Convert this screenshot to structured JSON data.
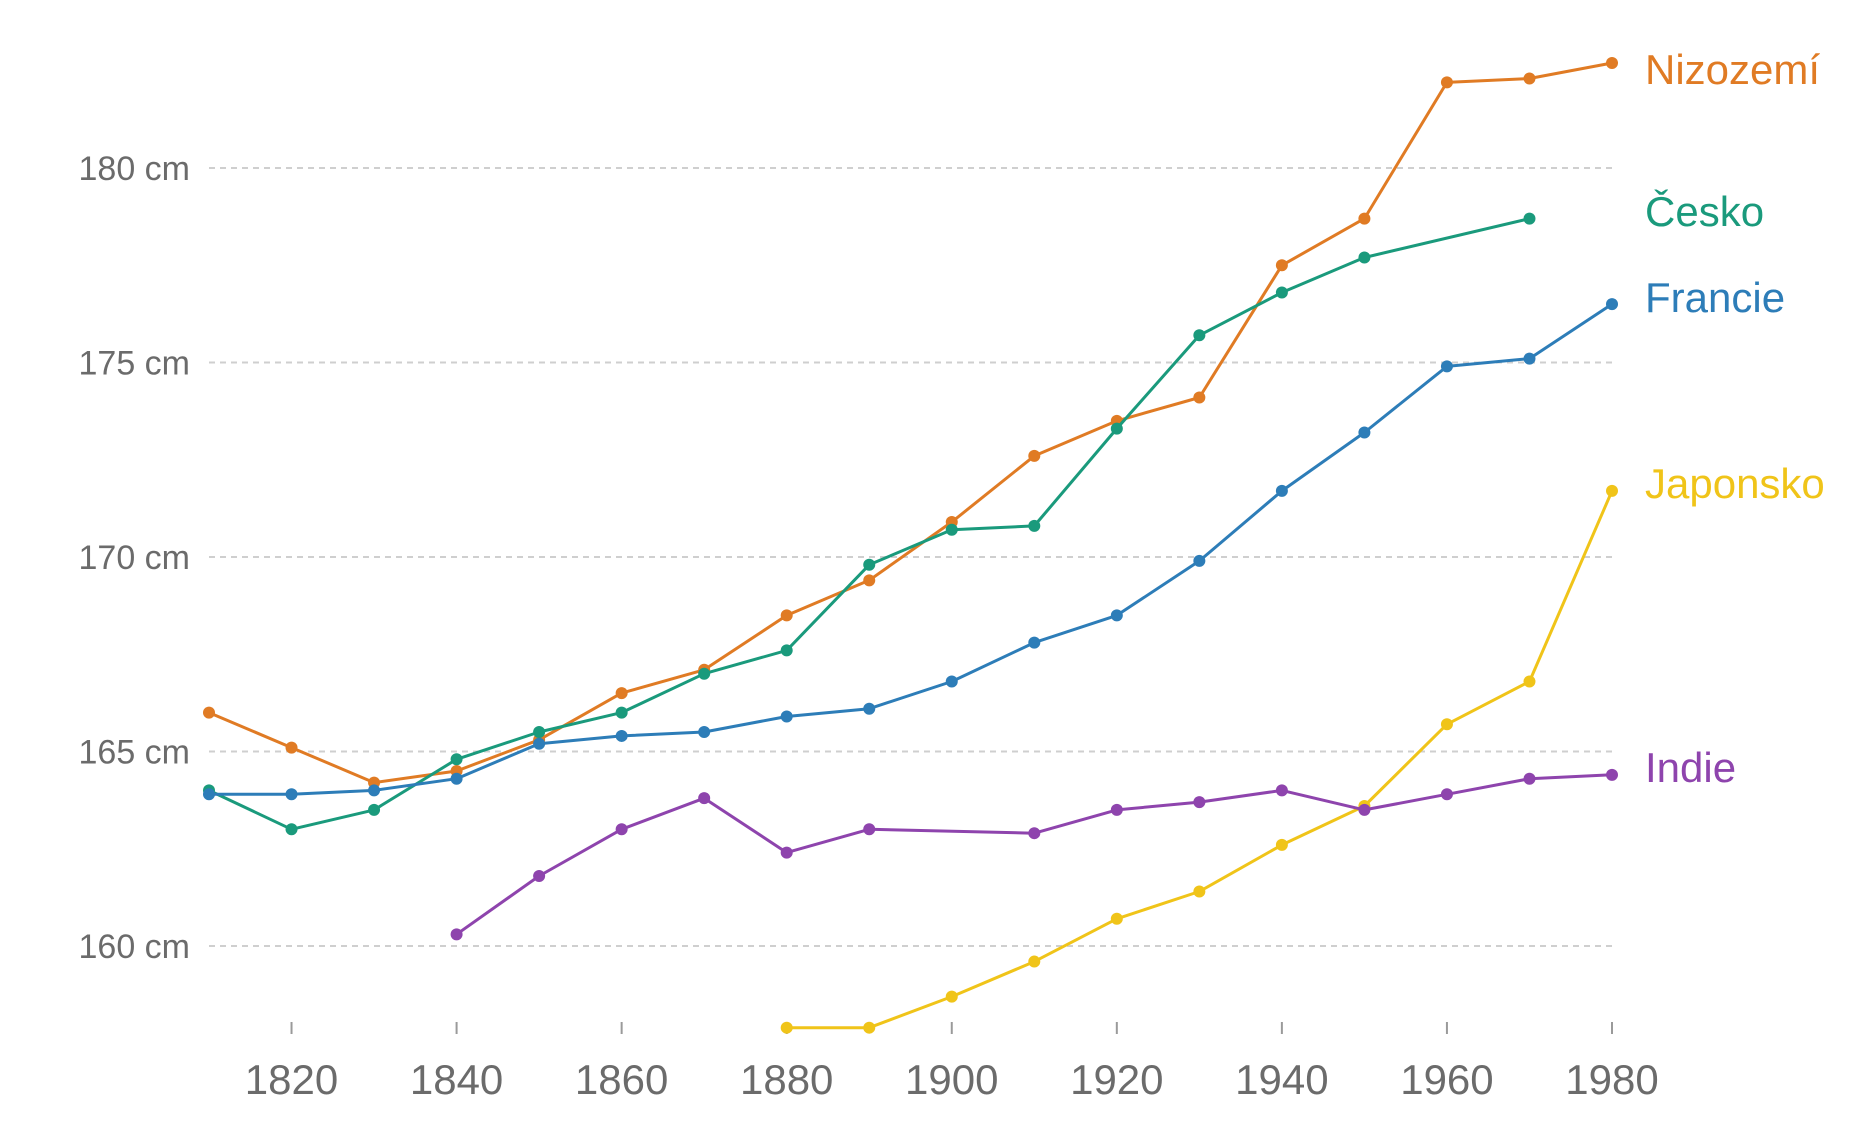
{
  "chart_data": {
    "type": "line",
    "title": "",
    "xlabel": "",
    "ylabel": "",
    "x_ticks": [
      1820,
      1840,
      1860,
      1880,
      1900,
      1920,
      1940,
      1960,
      1980
    ],
    "y_ticks": [
      160,
      165,
      170,
      175,
      180
    ],
    "y_tick_labels": [
      "160 cm",
      "165 cm",
      "170 cm",
      "175 cm",
      "180 cm"
    ],
    "xlim": [
      1810,
      1980
    ],
    "ylim": [
      157.9,
      183.0
    ],
    "grid": "horizontal dashed",
    "legend": "labels at line ends (right)",
    "series": [
      {
        "name": "Nizozemí",
        "color": "#e07b24",
        "points": [
          [
            1810,
            166.0
          ],
          [
            1820,
            165.1
          ],
          [
            1830,
            164.2
          ],
          [
            1840,
            164.5
          ],
          [
            1850,
            165.3
          ],
          [
            1860,
            166.5
          ],
          [
            1870,
            167.1
          ],
          [
            1880,
            168.5
          ],
          [
            1890,
            169.4
          ],
          [
            1900,
            170.9
          ],
          [
            1910,
            172.6
          ],
          [
            1920,
            173.5
          ],
          [
            1930,
            174.1
          ],
          [
            1940,
            177.5
          ],
          [
            1950,
            178.7
          ],
          [
            1960,
            182.2
          ],
          [
            1970,
            182.3
          ],
          [
            1980,
            182.7
          ]
        ]
      },
      {
        "name": "Česko",
        "color": "#1a9a7c",
        "points": [
          [
            1810,
            164.0
          ],
          [
            1820,
            163.0
          ],
          [
            1830,
            163.5
          ],
          [
            1840,
            164.8
          ],
          [
            1850,
            165.5
          ],
          [
            1860,
            166.0
          ],
          [
            1870,
            167.0
          ],
          [
            1880,
            167.6
          ],
          [
            1890,
            169.8
          ],
          [
            1900,
            170.7
          ],
          [
            1910,
            170.8
          ],
          [
            1920,
            173.3
          ],
          [
            1930,
            175.7
          ],
          [
            1940,
            176.8
          ],
          [
            1950,
            177.7
          ],
          [
            1970,
            178.7
          ]
        ]
      },
      {
        "name": "Francie",
        "color": "#2d7db8",
        "points": [
          [
            1810,
            163.9
          ],
          [
            1820,
            163.9
          ],
          [
            1830,
            164.0
          ],
          [
            1840,
            164.3
          ],
          [
            1850,
            165.2
          ],
          [
            1860,
            165.4
          ],
          [
            1870,
            165.5
          ],
          [
            1880,
            165.9
          ],
          [
            1890,
            166.1
          ],
          [
            1900,
            166.8
          ],
          [
            1910,
            167.8
          ],
          [
            1920,
            168.5
          ],
          [
            1930,
            169.9
          ],
          [
            1940,
            171.7
          ],
          [
            1950,
            173.2
          ],
          [
            1960,
            174.9
          ],
          [
            1970,
            175.1
          ],
          [
            1980,
            176.5
          ]
        ]
      },
      {
        "name": "Japonsko",
        "color": "#f0c419",
        "points": [
          [
            1880,
            157.9
          ],
          [
            1890,
            157.9
          ],
          [
            1900,
            158.7
          ],
          [
            1910,
            159.6
          ],
          [
            1920,
            160.7
          ],
          [
            1930,
            161.4
          ],
          [
            1940,
            162.6
          ],
          [
            1950,
            163.6
          ],
          [
            1960,
            165.7
          ],
          [
            1970,
            166.8
          ],
          [
            1980,
            171.7
          ]
        ]
      },
      {
        "name": "Indie",
        "color": "#8e44ad",
        "points": [
          [
            1840,
            160.3
          ],
          [
            1850,
            161.8
          ],
          [
            1860,
            163.0
          ],
          [
            1870,
            163.8
          ],
          [
            1880,
            162.4
          ],
          [
            1890,
            163.0
          ],
          [
            1910,
            162.9
          ],
          [
            1920,
            163.5
          ],
          [
            1930,
            163.7
          ],
          [
            1940,
            164.0
          ],
          [
            1950,
            163.5
          ],
          [
            1960,
            163.9
          ],
          [
            1970,
            164.3
          ],
          [
            1980,
            164.4
          ]
        ]
      }
    ]
  }
}
